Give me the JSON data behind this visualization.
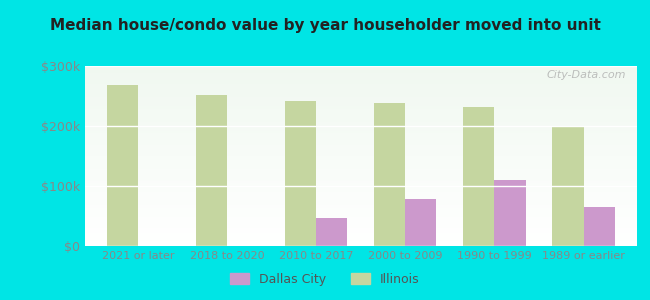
{
  "title": "Median house/condo value by year householder moved into unit",
  "categories": [
    "2021 or later",
    "2018 to 2020",
    "2010 to 2017",
    "2000 to 2009",
    "1990 to 1999",
    "1989 or earlier"
  ],
  "dallas_values": [
    null,
    null,
    47000,
    78000,
    110000,
    65000
  ],
  "illinois_values": [
    268000,
    252000,
    242000,
    239000,
    231000,
    200000
  ],
  "dallas_color": "#cc99cc",
  "illinois_color": "#c5d6a0",
  "background_outer": "#00e5e5",
  "background_inner_top": "#f0f8f0",
  "background_inner_bottom": "#ffffff",
  "ylim": [
    0,
    300000
  ],
  "yticks": [
    0,
    100000,
    200000,
    300000
  ],
  "ytick_labels": [
    "$0",
    "$100k",
    "$200k",
    "$300k"
  ],
  "bar_width": 0.35,
  "legend_dallas": "Dallas City",
  "legend_illinois": "Illinois",
  "watermark": "City-Data.com"
}
